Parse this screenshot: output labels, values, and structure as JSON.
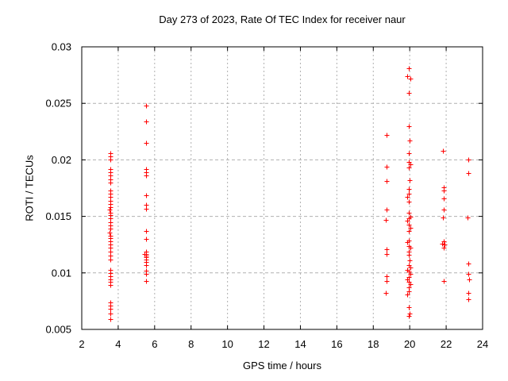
{
  "chart_data": {
    "type": "scatter",
    "title": "Day 273 of 2023, Rate Of TEC Index for receiver naur",
    "xlabel": "GPS time / hours",
    "ylabel": "ROTI / TECUs",
    "xlim": [
      2,
      24
    ],
    "ylim": [
      0.005,
      0.03
    ],
    "xticks": {
      "values": [
        2,
        4,
        6,
        8,
        10,
        12,
        14,
        16,
        18,
        20,
        22,
        24
      ],
      "labels": [
        "2",
        "4",
        "6",
        "8",
        "10",
        "12",
        "14",
        "16",
        "18",
        "20",
        "22",
        "24"
      ]
    },
    "yticks": {
      "values": [
        0.005,
        0.01,
        0.015,
        0.02,
        0.025,
        0.03
      ],
      "labels": [
        "0.005",
        "0.01",
        "0.015",
        "0.02",
        "0.025",
        "0.03"
      ]
    },
    "grid": true,
    "legend": "none",
    "marker": {
      "shape": "plus",
      "color": "#ff0000",
      "size": 7
    },
    "colors": {
      "background": "#ffffff",
      "border": "#000000",
      "grid": "#b0b0b0",
      "text": "#000000"
    },
    "series": [
      {
        "name": "ROTI",
        "points": [
          [
            3.57,
            0.0206
          ],
          [
            3.59,
            0.0203
          ],
          [
            3.57,
            0.02
          ],
          [
            3.57,
            0.0192
          ],
          [
            3.59,
            0.0189
          ],
          [
            3.57,
            0.0186
          ],
          [
            3.55,
            0.0183
          ],
          [
            3.57,
            0.018
          ],
          [
            3.59,
            0.0173
          ],
          [
            3.57,
            0.017
          ],
          [
            3.55,
            0.0167
          ],
          [
            3.57,
            0.0164
          ],
          [
            3.59,
            0.0161
          ],
          [
            3.57,
            0.0158
          ],
          [
            3.52,
            0.0156
          ],
          [
            3.57,
            0.0153
          ],
          [
            3.59,
            0.0151
          ],
          [
            3.55,
            0.0148
          ],
          [
            3.57,
            0.0145
          ],
          [
            3.59,
            0.0142
          ],
          [
            3.57,
            0.0139
          ],
          [
            3.52,
            0.0136
          ],
          [
            3.57,
            0.0133
          ],
          [
            3.55,
            0.0131
          ],
          [
            3.57,
            0.0128
          ],
          [
            3.59,
            0.0125
          ],
          [
            3.57,
            0.0122
          ],
          [
            3.55,
            0.0119
          ],
          [
            3.57,
            0.0115
          ],
          [
            3.59,
            0.0112
          ],
          [
            3.57,
            0.0103
          ],
          [
            3.55,
            0.01
          ],
          [
            3.57,
            0.0097
          ],
          [
            3.59,
            0.0094
          ],
          [
            3.57,
            0.0092
          ],
          [
            3.55,
            0.0089
          ],
          [
            3.57,
            0.0074
          ],
          [
            3.59,
            0.0071
          ],
          [
            3.57,
            0.0068
          ],
          [
            3.55,
            0.0064
          ],
          [
            3.57,
            0.0059
          ],
          [
            5.53,
            0.0248
          ],
          [
            5.53,
            0.0234
          ],
          [
            5.55,
            0.0215
          ],
          [
            5.53,
            0.0192
          ],
          [
            5.55,
            0.0189
          ],
          [
            5.53,
            0.0186
          ],
          [
            5.53,
            0.0169
          ],
          [
            5.55,
            0.016
          ],
          [
            5.53,
            0.0157
          ],
          [
            5.53,
            0.0137
          ],
          [
            5.55,
            0.013
          ],
          [
            5.53,
            0.0119
          ],
          [
            5.45,
            0.0117
          ],
          [
            5.53,
            0.0117
          ],
          [
            5.55,
            0.0115
          ],
          [
            5.53,
            0.0114
          ],
          [
            5.55,
            0.0112
          ],
          [
            5.53,
            0.011
          ],
          [
            5.53,
            0.0107
          ],
          [
            5.55,
            0.0102
          ],
          [
            5.53,
            0.0099
          ],
          [
            5.53,
            0.0093
          ],
          [
            18.71,
            0.0222
          ],
          [
            18.71,
            0.0194
          ],
          [
            18.73,
            0.0181
          ],
          [
            18.71,
            0.0156
          ],
          [
            18.69,
            0.0147
          ],
          [
            18.71,
            0.0121
          ],
          [
            18.73,
            0.0117
          ],
          [
            18.71,
            0.0097
          ],
          [
            18.71,
            0.0093
          ],
          [
            18.69,
            0.0082
          ],
          [
            19.95,
            0.0281
          ],
          [
            19.88,
            0.0274
          ],
          [
            20.05,
            0.0272
          ],
          [
            19.95,
            0.0259
          ],
          [
            19.95,
            0.023
          ],
          [
            19.98,
            0.0217
          ],
          [
            19.95,
            0.0206
          ],
          [
            19.95,
            0.0198
          ],
          [
            20.05,
            0.0196
          ],
          [
            19.95,
            0.0193
          ],
          [
            19.98,
            0.0182
          ],
          [
            19.95,
            0.0174
          ],
          [
            19.95,
            0.017
          ],
          [
            19.88,
            0.0167
          ],
          [
            19.95,
            0.0163
          ],
          [
            19.95,
            0.0153
          ],
          [
            20.05,
            0.015
          ],
          [
            19.95,
            0.0148
          ],
          [
            19.88,
            0.0146
          ],
          [
            19.95,
            0.0143
          ],
          [
            20.05,
            0.014
          ],
          [
            19.95,
            0.0137
          ],
          [
            19.95,
            0.0129
          ],
          [
            19.88,
            0.0127
          ],
          [
            19.95,
            0.0124
          ],
          [
            20.05,
            0.0122
          ],
          [
            19.95,
            0.0119
          ],
          [
            19.95,
            0.0116
          ],
          [
            19.98,
            0.0111
          ],
          [
            19.95,
            0.0107
          ],
          [
            20.05,
            0.0105
          ],
          [
            19.88,
            0.0103
          ],
          [
            19.95,
            0.0101
          ],
          [
            20.05,
            0.0099
          ],
          [
            19.95,
            0.0096
          ],
          [
            19.88,
            0.0094
          ],
          [
            19.95,
            0.0092
          ],
          [
            20.05,
            0.009
          ],
          [
            19.95,
            0.0087
          ],
          [
            19.95,
            0.0084
          ],
          [
            19.88,
            0.0081
          ],
          [
            19.95,
            0.007
          ],
          [
            19.98,
            0.0064
          ],
          [
            19.95,
            0.0062
          ],
          [
            21.8,
            0.0208
          ],
          [
            21.85,
            0.0176
          ],
          [
            21.87,
            0.0173
          ],
          [
            21.85,
            0.0166
          ],
          [
            21.85,
            0.0156
          ],
          [
            21.83,
            0.0149
          ],
          [
            21.85,
            0.0128
          ],
          [
            21.78,
            0.0126
          ],
          [
            21.9,
            0.0125
          ],
          [
            21.85,
            0.0122
          ],
          [
            21.85,
            0.0093
          ],
          [
            23.22,
            0.02
          ],
          [
            23.22,
            0.0188
          ],
          [
            23.18,
            0.0149
          ],
          [
            23.22,
            0.0108
          ],
          [
            23.22,
            0.0099
          ],
          [
            23.25,
            0.0094
          ],
          [
            23.22,
            0.0082
          ],
          [
            23.22,
            0.0077
          ]
        ]
      }
    ]
  }
}
